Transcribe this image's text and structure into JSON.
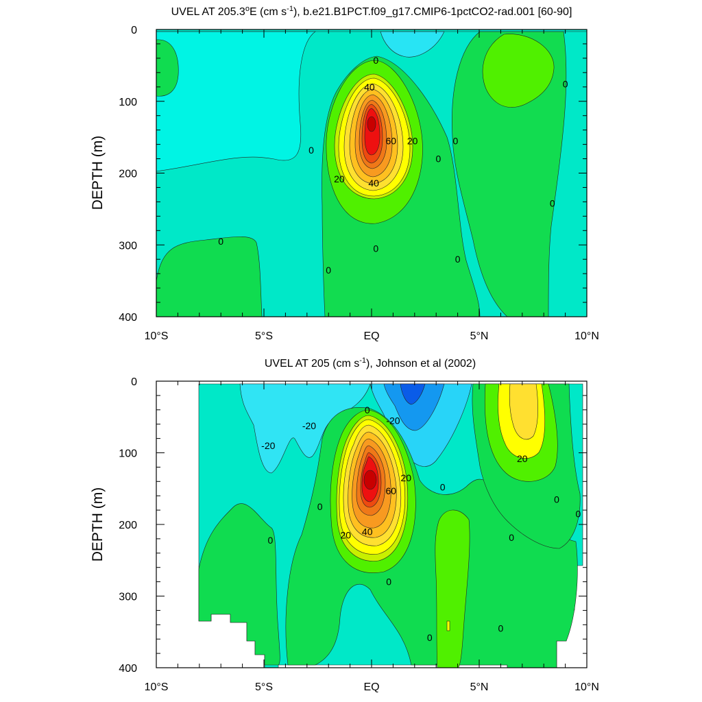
{
  "chart_data": [
    {
      "type": "contour",
      "title": "UVEL AT 205.3°E (cm s-1), b.e21.B1PCT.f09_g17.CMIP6-1pctCO2-rad.001 [60-90]",
      "title_parts": {
        "before_sup1": "UVEL AT 205.3",
        "sup1": "o",
        "after_sup1": "E (cm s",
        "sup2": "-1",
        "after_sup2": "), b.e21.B1PCT.f09_g17.CMIP6-1pctCO2-rad.001 [60-90]"
      },
      "ylabel": "DEPTH (m)",
      "xlim": [
        -10,
        10
      ],
      "ylim": [
        0,
        400
      ],
      "y_inverted": true,
      "x_ticks": [
        {
          "value": -10,
          "label": "10°S"
        },
        {
          "value": -5,
          "label": "5°S"
        },
        {
          "value": 0,
          "label": "EQ"
        },
        {
          "value": 5,
          "label": "5°N"
        },
        {
          "value": 10,
          "label": "10°N"
        }
      ],
      "y_ticks": [
        0,
        100,
        200,
        300,
        400
      ],
      "contour_labels": [
        {
          "text": "40",
          "lat": -0.1,
          "depth": 80
        },
        {
          "text": "60",
          "lat": 0.9,
          "depth": 155
        },
        {
          "text": "20",
          "lat": 1.9,
          "depth": 155
        },
        {
          "text": "20",
          "lat": -1.5,
          "depth": 208
        },
        {
          "text": "40",
          "lat": 0.1,
          "depth": 214
        },
        {
          "text": "0",
          "lat": 0.2,
          "depth": 43
        },
        {
          "text": "0",
          "lat": -2.8,
          "depth": 168
        },
        {
          "text": "0",
          "lat": 3.1,
          "depth": 180
        },
        {
          "text": "0",
          "lat": 3.9,
          "depth": 155
        },
        {
          "text": "0",
          "lat": -7.0,
          "depth": 295
        },
        {
          "text": "0",
          "lat": 0.2,
          "depth": 305
        },
        {
          "text": "0",
          "lat": -2.0,
          "depth": 335
        },
        {
          "text": "0",
          "lat": 4.0,
          "depth": 320
        },
        {
          "text": "0",
          "lat": 9.0,
          "depth": 76
        },
        {
          "text": "0",
          "lat": 8.4,
          "depth": 242
        }
      ]
    },
    {
      "type": "contour",
      "title": "UVEL AT 205 (cm s-1), Johnson et al (2002)",
      "title_parts": {
        "before_sup": "UVEL AT 205 (cm s",
        "sup": "-1",
        "after_sup": "), Johnson et al (2002)"
      },
      "ylabel": "DEPTH (m)",
      "xlim": [
        -10,
        10
      ],
      "ylim": [
        0,
        400
      ],
      "y_inverted": true,
      "x_ticks": [
        {
          "value": -10,
          "label": "10°S"
        },
        {
          "value": -5,
          "label": "5°S"
        },
        {
          "value": 0,
          "label": "EQ"
        },
        {
          "value": 5,
          "label": "5°N"
        },
        {
          "value": 10,
          "label": "10°N"
        }
      ],
      "y_ticks": [
        0,
        100,
        200,
        300,
        400
      ],
      "contour_labels": [
        {
          "text": "-20",
          "lat": -4.8,
          "depth": 90
        },
        {
          "text": "-20",
          "lat": -2.9,
          "depth": 62
        },
        {
          "text": "-20",
          "lat": 1.0,
          "depth": 55
        },
        {
          "text": "0",
          "lat": -0.2,
          "depth": 40
        },
        {
          "text": "20",
          "lat": 1.6,
          "depth": 135
        },
        {
          "text": "60",
          "lat": 0.9,
          "depth": 153
        },
        {
          "text": "20",
          "lat": 7.0,
          "depth": 108
        },
        {
          "text": "20",
          "lat": -1.2,
          "depth": 215
        },
        {
          "text": "40",
          "lat": -0.2,
          "depth": 210
        },
        {
          "text": "0",
          "lat": -2.4,
          "depth": 175
        },
        {
          "text": "0",
          "lat": 3.3,
          "depth": 148
        },
        {
          "text": "0",
          "lat": -4.7,
          "depth": 222
        },
        {
          "text": "0",
          "lat": 0.8,
          "depth": 280
        },
        {
          "text": "0",
          "lat": 6.5,
          "depth": 218
        },
        {
          "text": "0",
          "lat": 8.6,
          "depth": 165
        },
        {
          "text": "0",
          "lat": 9.6,
          "depth": 185
        },
        {
          "text": "0",
          "lat": 6.0,
          "depth": 345
        },
        {
          "text": "0",
          "lat": 2.7,
          "depth": 358
        }
      ]
    }
  ]
}
